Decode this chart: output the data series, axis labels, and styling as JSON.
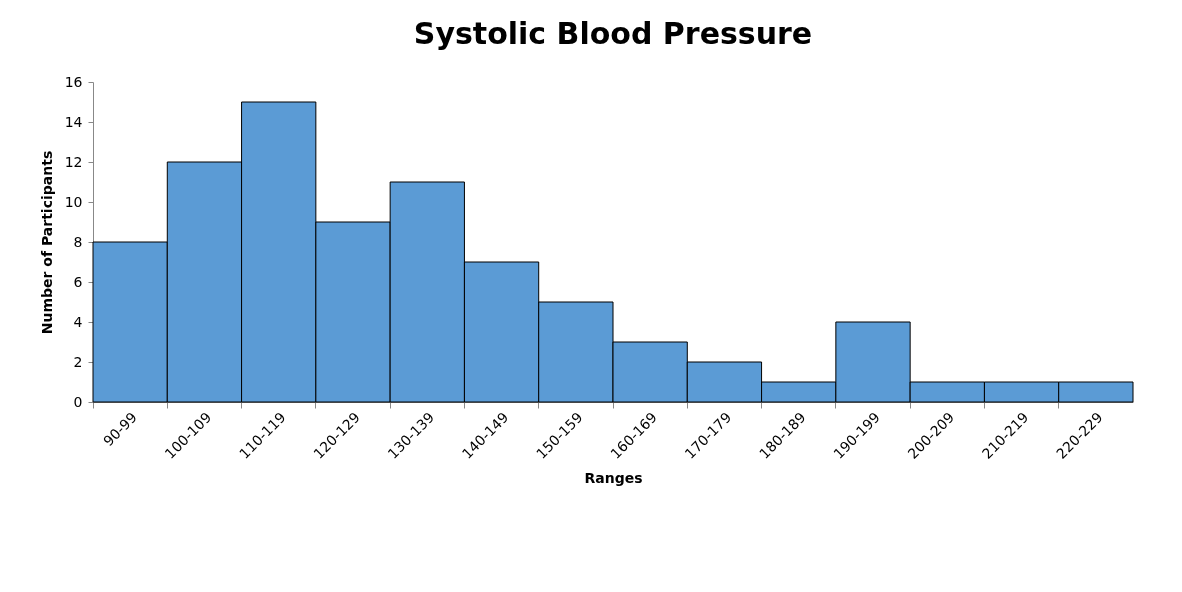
{
  "chart_data": {
    "type": "bar",
    "title": "Systolic Blood Pressure",
    "xlabel": "Ranges",
    "ylabel": "Number of Participants",
    "categories": [
      "90-99",
      "100-109",
      "110-119",
      "120-129",
      "130-139",
      "140-149",
      "150-159",
      "160-169",
      "170-179",
      "180-189",
      "190-199",
      "200-209",
      "210-219",
      "220-229"
    ],
    "values": [
      8,
      12,
      15,
      9,
      11,
      7,
      5,
      3,
      2,
      1,
      4,
      1,
      1,
      1
    ],
    "color": "#5b9bd5",
    "ylim": [
      0,
      16
    ],
    "yticks": [
      0,
      2,
      4,
      6,
      8,
      10,
      12,
      14,
      16
    ],
    "grid": false
  }
}
